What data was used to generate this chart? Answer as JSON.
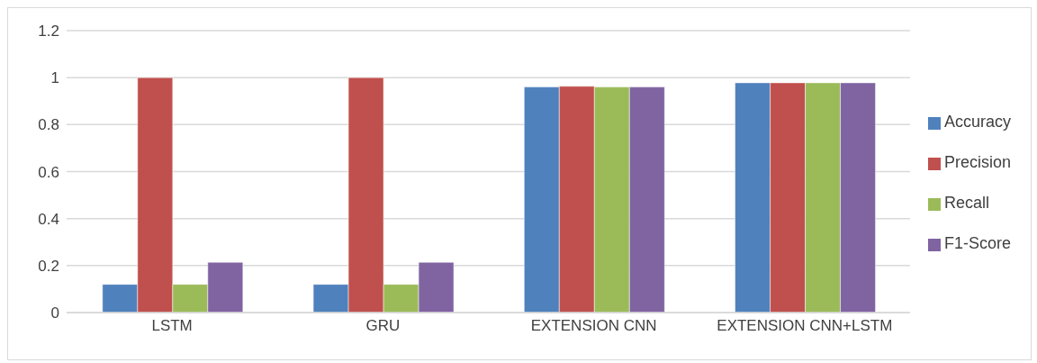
{
  "chart_data": {
    "type": "bar",
    "categories": [
      "LSTM",
      "GRU",
      "EXTENSION CNN",
      "EXTENSION CNN+LSTM"
    ],
    "series": [
      {
        "name": "Accuracy",
        "color": "#4f81bd",
        "values": [
          0.12,
          0.12,
          0.96,
          0.978
        ]
      },
      {
        "name": "Precision",
        "color": "#c0504d",
        "values": [
          1,
          1,
          0.963,
          0.978
        ]
      },
      {
        "name": "Recall",
        "color": "#9bbb59",
        "values": [
          0.12,
          0.12,
          0.96,
          0.978
        ]
      },
      {
        "name": "F1-Score",
        "color": "#8064a2",
        "values": [
          0.214,
          0.214,
          0.96,
          0.978
        ]
      }
    ],
    "ylim": [
      0,
      1.2
    ],
    "yticks": [
      0,
      0.2,
      0.4,
      0.6,
      0.8,
      1,
      1.2
    ],
    "grid": "y",
    "legend": "right"
  }
}
